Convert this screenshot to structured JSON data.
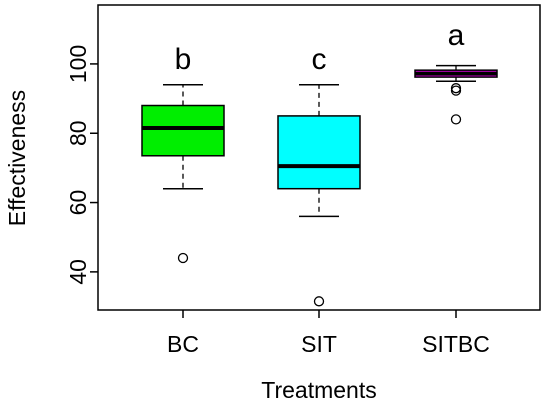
{
  "chart_data": {
    "type": "box",
    "xlabel": "Treatments",
    "ylabel": "Effectiveness",
    "ylim": [
      29,
      117
    ],
    "yticks": [
      40,
      60,
      80,
      100
    ],
    "categories": [
      "BC",
      "SIT",
      "SITBC"
    ],
    "grid": false,
    "boxes": [
      {
        "category": "BC",
        "color": "#00ee00",
        "letter": "b",
        "whisker_low": 64,
        "q1": 73.5,
        "median": 81.5,
        "q3": 88,
        "whisker_high": 94,
        "outliers": [
          44
        ]
      },
      {
        "category": "SIT",
        "color": "#00ffff",
        "letter": "c",
        "whisker_low": 56,
        "q1": 64,
        "median": 70.5,
        "q3": 85,
        "whisker_high": 94,
        "outliers": [
          31.5
        ]
      },
      {
        "category": "SITBC",
        "color": "#ff00ff",
        "letter": "a",
        "whisker_low": 95,
        "q1": 96.2,
        "median": 97.2,
        "q3": 98.2,
        "whisker_high": 99.5,
        "outliers": [
          93,
          92.3,
          84
        ]
      }
    ]
  }
}
